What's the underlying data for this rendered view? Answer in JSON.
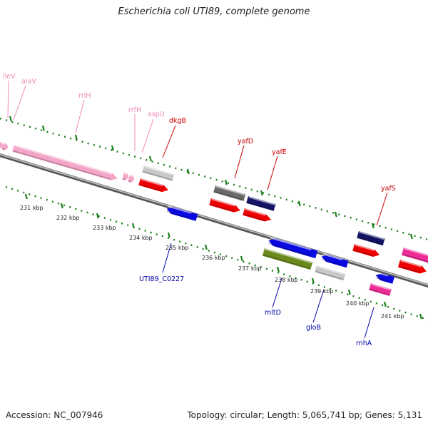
{
  "title": "Escherichia coli UTI89, complete genome",
  "footer": {
    "accession": "Accession: NC_007946",
    "summary": "Topology: circular; Length: 5,065,741 bp; Genes: 5,131"
  },
  "colors": {
    "backbone": "#7a7a7a",
    "tick": "#1a7f1a",
    "label_pink": "#f08ab8",
    "label_red": "#cc0000",
    "label_blue": "#0000aa",
    "scale_text": "#222222"
  },
  "scale_labels": [
    "231 kbp",
    "232 kbp",
    "233 kbp",
    "234 kbp",
    "235 kbp",
    "236 kbp",
    "237 kbp",
    "238 kbp",
    "239 kbp",
    "240 kbp",
    "241 kbp"
  ],
  "gene_labels": {
    "top": [
      {
        "text": "ileV",
        "color": "pink"
      },
      {
        "text": "alaV",
        "color": "pink"
      },
      {
        "text": "rrlH",
        "color": "pink"
      },
      {
        "text": "rrfH",
        "color": "pink"
      },
      {
        "text": "aspU",
        "color": "pink"
      },
      {
        "text": "dkgB",
        "color": "red"
      },
      {
        "text": "yafD",
        "color": "red"
      },
      {
        "text": "yafE",
        "color": "red"
      },
      {
        "text": "yafS",
        "color": "red"
      }
    ],
    "bottom": [
      {
        "text": "UTI89_C0227",
        "color": "blue"
      },
      {
        "text": "mltD",
        "color": "blue"
      },
      {
        "text": "gloB",
        "color": "blue"
      },
      {
        "text": "rnhA",
        "color": "blue"
      }
    ]
  },
  "gene_features": [
    {
      "name": "ileV-arrow",
      "color": "#f4a6c8"
    },
    {
      "name": "alaV-arrow",
      "color": "#f4a6c8"
    },
    {
      "name": "rrlH-arrow",
      "color": "#f4a6c8"
    },
    {
      "name": "rrfH-arrow",
      "color": "#f4a6c8"
    },
    {
      "name": "aspU-arrow",
      "color": "#f4a6c8"
    },
    {
      "name": "gray-gene-1",
      "color": "#c8c8c8"
    },
    {
      "name": "dkgB-arrow",
      "color": "#ee0000"
    },
    {
      "name": "UTI89-C0227-arrow",
      "color": "#0a0ae0"
    },
    {
      "name": "darkgray-gene",
      "color": "#6a6a6a"
    },
    {
      "name": "yafD-arrow",
      "color": "#ee0000"
    },
    {
      "name": "yafD-companion-gene",
      "color": "#141466"
    },
    {
      "name": "yafE-arrow",
      "color": "#ee0000"
    },
    {
      "name": "mltD-arrow",
      "color": "#0a0ae0"
    },
    {
      "name": "olive-gene",
      "color": "#6a8a1e"
    },
    {
      "name": "gloB-arrow",
      "color": "#0a0ae0"
    },
    {
      "name": "gray-gene-2",
      "color": "#c8c8c8"
    },
    {
      "name": "yafS-companion-gene",
      "color": "#141466"
    },
    {
      "name": "yafS-arrow",
      "color": "#ee0000"
    },
    {
      "name": "rnhA-arrow",
      "color": "#0a0ae0"
    },
    {
      "name": "rnhA-pink-gene",
      "color": "#ee2e98"
    },
    {
      "name": "magenta-gene-edge",
      "color": "#ee2e98"
    },
    {
      "name": "red-gene-edge",
      "color": "#ee0000"
    }
  ]
}
